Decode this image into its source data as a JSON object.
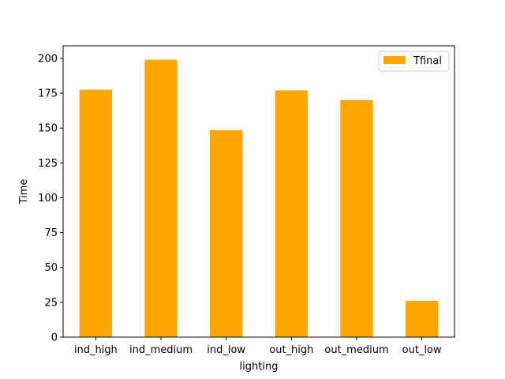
{
  "chart_data": {
    "type": "bar",
    "categories": [
      "ind_high",
      "ind_medium",
      "ind_low",
      "out_high",
      "out_medium",
      "out_low"
    ],
    "series": [
      {
        "name": "Tfinal",
        "values": [
          177.5,
          199,
          148.5,
          177,
          170,
          26
        ],
        "color": "#FFA500"
      }
    ],
    "xlabel": "lighting",
    "ylabel": "Time",
    "ylim": [
      0,
      209
    ],
    "yticks": [
      0,
      25,
      50,
      75,
      100,
      125,
      150,
      175,
      200
    ],
    "grid": false,
    "legend_position": "top-right"
  }
}
